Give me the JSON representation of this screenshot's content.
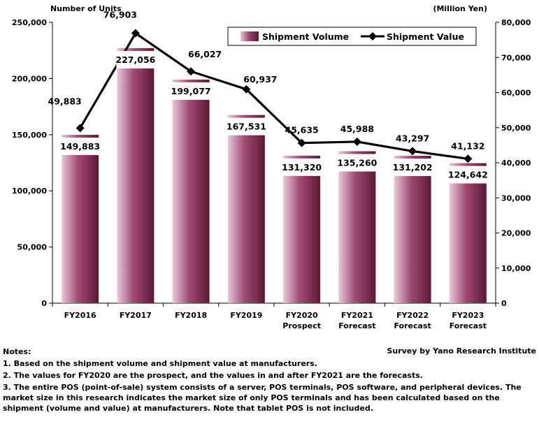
{
  "chart_data": {
    "type": "bar+line",
    "left_axis_title": "Number of Units",
    "right_axis_title": "(Million Yen)",
    "categories": [
      [
        "FY2016"
      ],
      [
        "FY2017"
      ],
      [
        "FY2018"
      ],
      [
        "FY2019"
      ],
      [
        "FY2020",
        "Prospect"
      ],
      [
        "FY2021",
        "Forecast"
      ],
      [
        "FY2022",
        "Forecast"
      ],
      [
        "FY2023",
        "Forecast"
      ]
    ],
    "left_ticks": [
      "0",
      "50,000",
      "100,000",
      "150,000",
      "200,000",
      "250,000"
    ],
    "right_ticks": [
      "0",
      "10,000",
      "20,000",
      "30,000",
      "40,000",
      "50,000",
      "60,000",
      "70,000",
      "80,000"
    ],
    "ylim_left": [
      0,
      250000
    ],
    "ylim_right": [
      0,
      80000
    ],
    "series": [
      {
        "name": "Shipment Volume",
        "type": "bar",
        "axis": "left",
        "values": [
          149883,
          227056,
          199077,
          167531,
          131320,
          135260,
          131202,
          124642
        ],
        "labels": [
          "149,883",
          "227,056",
          "199,077",
          "167,531",
          "131,320",
          "135,260",
          "131,202",
          "124,642"
        ]
      },
      {
        "name": "Shipment Value",
        "type": "line",
        "axis": "right",
        "values": [
          49883,
          76903,
          66027,
          60937,
          45635,
          45988,
          43297,
          41132
        ],
        "labels": [
          "49,883",
          "76,903",
          "66,027",
          "60,937",
          "45,635",
          "45,988",
          "43,297",
          "41,132"
        ]
      }
    ],
    "colors": {
      "bar_dark": "#5c1836",
      "bar_mid": "#a04a72",
      "bar_light": "#e8c8d8",
      "line": "#000000"
    },
    "legend_position": "top-right"
  },
  "notes": {
    "heading": "Notes:",
    "items": [
      "1. Based on the shipment volume and shipment value at manufacturers.",
      "2. The values for FY2020 are the prospect, and the values in and after FY2021 are the forecasts.",
      "3. The entire POS (point-of-sale) system consists of a server, POS terminals, POS software, and peripheral devices. The market size in this research indicates the market size of only POS terminals and has been calculated based on the shipment (volume and value) at manufacturers. Note that tablet POS is not included."
    ]
  },
  "source": "Survey by Yano Research Institute"
}
